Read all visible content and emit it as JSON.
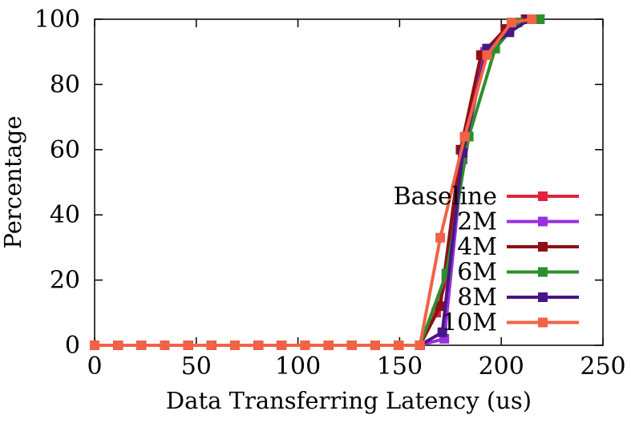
{
  "chart_data": {
    "type": "line",
    "title": "",
    "xlabel": "Data Transferring Latency (us)",
    "ylabel": "Percentage",
    "xlim": [
      0,
      250
    ],
    "ylim": [
      0,
      100
    ],
    "xticks": [
      "0",
      "50",
      "100",
      "150",
      "200",
      "250"
    ],
    "yticks": [
      "0",
      "20",
      "40",
      "60",
      "80",
      "100"
    ],
    "grid": false,
    "legend_position": "bottom-right",
    "marker": "square",
    "series": [
      {
        "name": "Baseline",
        "color": "#e0243f",
        "x": [
          0,
          11.5,
          23,
          34.5,
          46,
          57.5,
          69,
          80.5,
          92,
          103.5,
          115,
          126.5,
          138,
          149.5,
          160,
          168,
          173,
          181,
          191,
          203,
          213
        ],
        "y": [
          0,
          0,
          0,
          0,
          0,
          0,
          0,
          0,
          0,
          0,
          0,
          0,
          0,
          0,
          0,
          10,
          20,
          58,
          89,
          97,
          100
        ]
      },
      {
        "name": "2M",
        "color": "#9a2fe0",
        "x": [
          0,
          11.5,
          23,
          34.5,
          46,
          57.5,
          69,
          80.5,
          92,
          103.5,
          115,
          126.5,
          138,
          149.5,
          160,
          172,
          181,
          192,
          204,
          214
        ],
        "y": [
          0,
          0,
          0,
          0,
          0,
          0,
          0,
          0,
          0,
          0,
          0,
          0,
          0,
          0,
          0,
          2,
          57,
          90,
          97,
          100
        ]
      },
      {
        "name": "4M",
        "color": "#8f0f14",
        "x": [
          0,
          11.5,
          23,
          34.5,
          46,
          57.5,
          69,
          80.5,
          92,
          103.5,
          115,
          126.5,
          138,
          149.5,
          160,
          170,
          180,
          190,
          202,
          212
        ],
        "y": [
          0,
          0,
          0,
          0,
          0,
          0,
          0,
          0,
          0,
          0,
          0,
          0,
          0,
          0,
          0,
          12,
          60,
          89,
          97,
          100
        ]
      },
      {
        "name": "6M",
        "color": "#2c8f2c",
        "x": [
          0,
          11.5,
          23,
          34.5,
          46,
          57.5,
          69,
          80.5,
          92,
          103.5,
          115,
          126.5,
          138,
          149.5,
          160,
          173,
          184,
          197,
          208,
          219
        ],
        "y": [
          0,
          0,
          0,
          0,
          0,
          0,
          0,
          0,
          0,
          0,
          0,
          0,
          0,
          0,
          0,
          22,
          64,
          91,
          99,
          100
        ]
      },
      {
        "name": "8M",
        "color": "#4a1585",
        "x": [
          0,
          11.5,
          23,
          34.5,
          46,
          57.5,
          69,
          80.5,
          92,
          103.5,
          115,
          126.5,
          138,
          149.5,
          160,
          171,
          181,
          193,
          204,
          214
        ],
        "y": [
          0,
          0,
          0,
          0,
          0,
          0,
          0,
          0,
          0,
          0,
          0,
          0,
          0,
          0,
          0,
          4,
          59,
          91,
          96,
          100
        ]
      },
      {
        "name": "10M",
        "color": "#f26246",
        "x": [
          0,
          11.5,
          23,
          34.5,
          46,
          57.5,
          69,
          80.5,
          92,
          103.5,
          115,
          126.5,
          138,
          149.5,
          160,
          170,
          182,
          193,
          205,
          215
        ],
        "y": [
          0,
          0,
          0,
          0,
          0,
          0,
          0,
          0,
          0,
          0,
          0,
          0,
          0,
          0,
          0,
          33,
          64,
          89,
          99,
          100
        ]
      }
    ]
  }
}
